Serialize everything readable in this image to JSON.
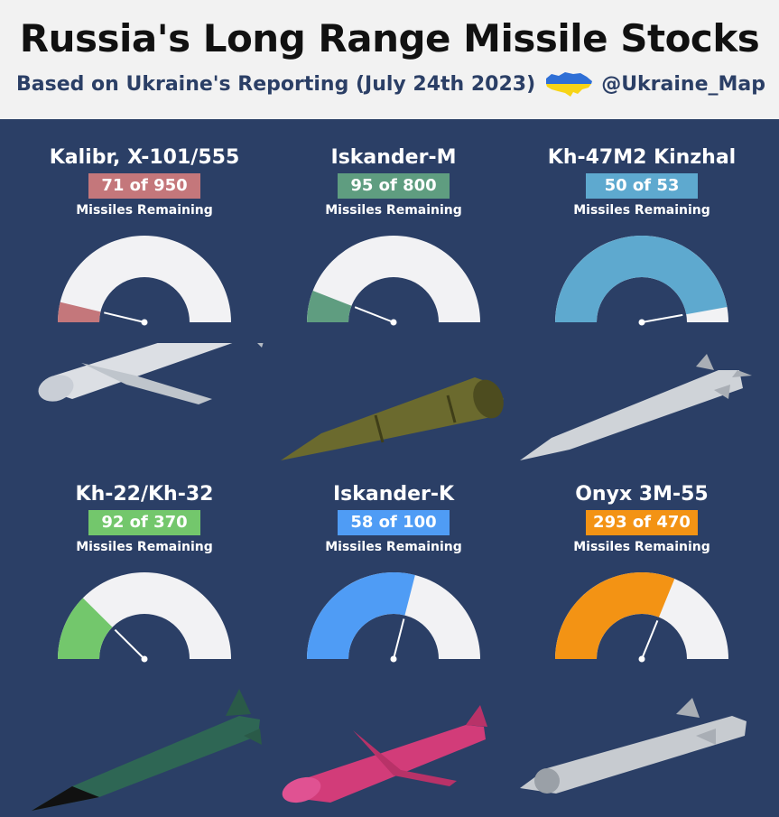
{
  "header": {
    "title": "Russia's Long Range Missile Stocks",
    "subtitle": "Based on Ukraine's Reporting (July 24th 2023)",
    "handle": "@Ukraine_Map",
    "flag_colors": [
      "#2f6fd6",
      "#f7d417"
    ]
  },
  "colors": {
    "background": "#2b3f66",
    "header_bg": "#f2f2f2",
    "gauge_empty": "#f2f2f4"
  },
  "chart_data": [
    {
      "type": "gauge",
      "title": "Kalibr, X-101/555",
      "label": "71 of 950",
      "subtitle": "Missiles Remaining",
      "remaining": 71,
      "total": 950,
      "color": "#c4777b",
      "missile_color": "#dcdfe4"
    },
    {
      "type": "gauge",
      "title": "Iskander-M",
      "label": "95 of 800",
      "subtitle": "Missiles Remaining",
      "remaining": 95,
      "total": 800,
      "color": "#5f9d80",
      "missile_color": "#6b6a2e"
    },
    {
      "type": "gauge",
      "title": "Kh-47M2 Kinzhal",
      "label": "50 of 53",
      "subtitle": "Missiles Remaining",
      "remaining": 50,
      "total": 53,
      "color": "#5ea9cf",
      "missile_color": "#cfd3d8"
    },
    {
      "type": "gauge",
      "title": "Kh-22/Kh-32",
      "label": "92 of 370",
      "subtitle": "Missiles Remaining",
      "remaining": 92,
      "total": 370,
      "color": "#73c76c",
      "missile_color": "#2e6654"
    },
    {
      "type": "gauge",
      "title": "Iskander-K",
      "label": "58 of 100",
      "subtitle": "Missiles Remaining",
      "remaining": 58,
      "total": 100,
      "color": "#4f9cf5",
      "missile_color": "#d23c79"
    },
    {
      "type": "gauge",
      "title": "Onyx 3M-55",
      "label": "293 of 470",
      "subtitle": "Missiles Remaining",
      "remaining": 293,
      "total": 470,
      "color": "#f39314",
      "missile_color": "#c7cbd0"
    }
  ]
}
